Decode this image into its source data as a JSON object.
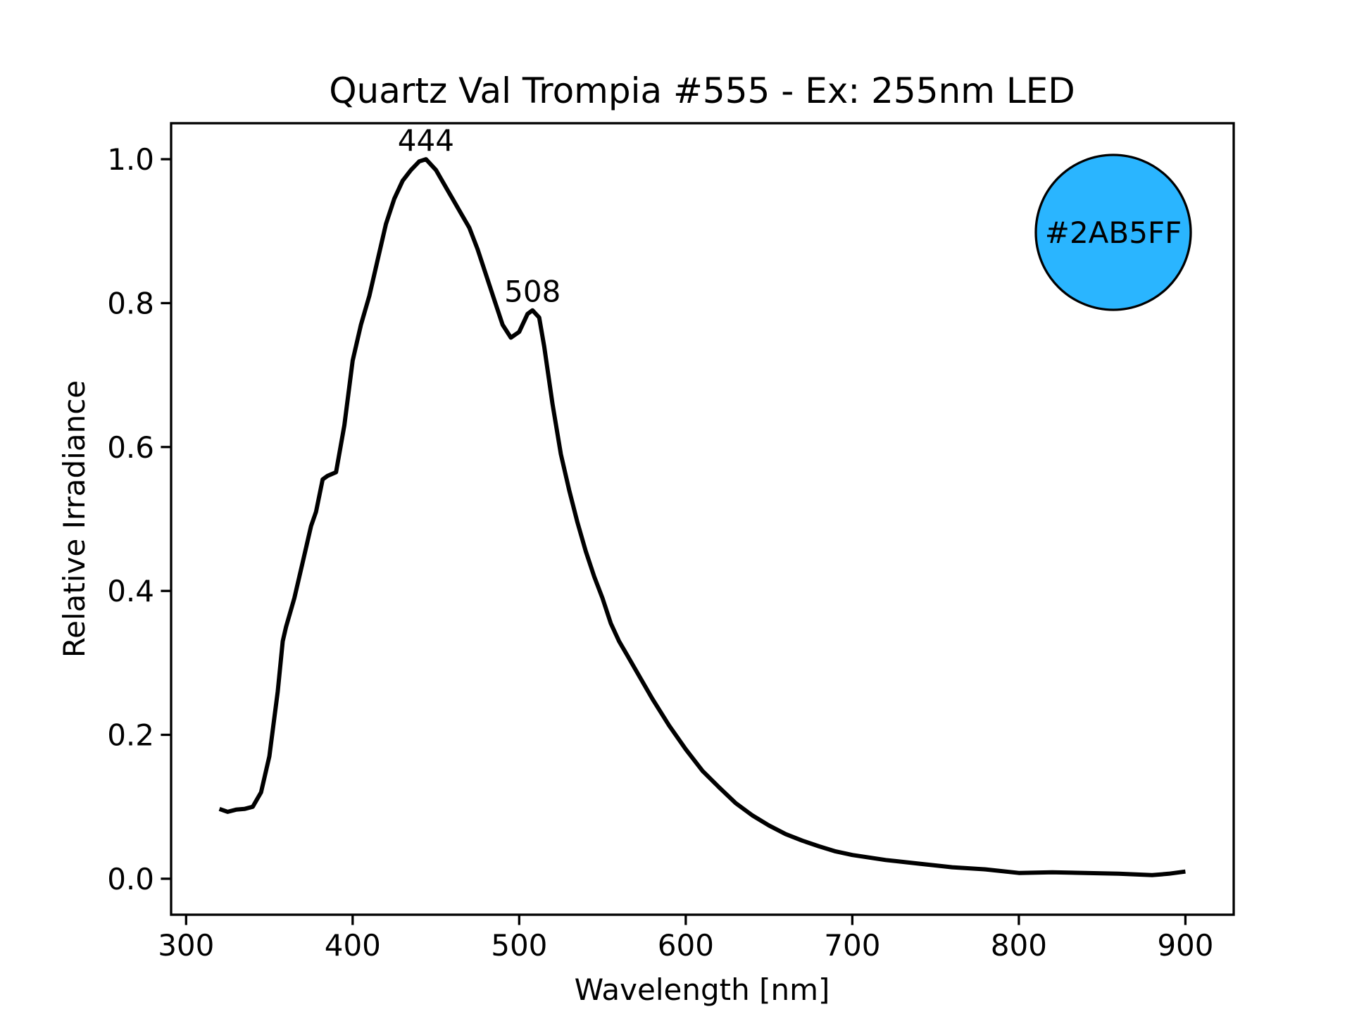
{
  "chart_data": {
    "type": "line",
    "title": "Quartz Val Trompia #555 - Ex: 255nm LED",
    "xlabel": "Wavelength [nm]",
    "ylabel": "Relative Irradiance",
    "xlim": [
      291,
      929
    ],
    "ylim": [
      -0.05,
      1.05
    ],
    "xticks": [
      300,
      400,
      500,
      600,
      700,
      800,
      900
    ],
    "yticks": [
      {
        "value": 0,
        "label": "0.0"
      },
      {
        "value": 0.2,
        "label": "0.2"
      },
      {
        "value": 0.4,
        "label": "0.4"
      },
      {
        "value": 0.6,
        "label": "0.6"
      },
      {
        "value": 0.8,
        "label": "0.8"
      },
      {
        "value": 1,
        "label": "1.0"
      }
    ],
    "series": [
      {
        "color": "#000000",
        "x": [
          320,
          325,
          330,
          335,
          340,
          345,
          350,
          355,
          358,
          360,
          365,
          370,
          375,
          378,
          382,
          385,
          390,
          395,
          400,
          405,
          410,
          415,
          420,
          425,
          430,
          435,
          440,
          444,
          450,
          455,
          460,
          465,
          470,
          475,
          480,
          485,
          490,
          495,
          500,
          505,
          508,
          512,
          515,
          520,
          525,
          530,
          535,
          540,
          545,
          550,
          555,
          560,
          565,
          570,
          580,
          590,
          600,
          610,
          620,
          630,
          640,
          650,
          660,
          670,
          680,
          690,
          700,
          720,
          740,
          760,
          780,
          800,
          820,
          840,
          860,
          880,
          890,
          900
        ],
        "values": [
          0.097,
          0.093,
          0.096,
          0.097,
          0.1,
          0.12,
          0.17,
          0.26,
          0.33,
          0.35,
          0.39,
          0.44,
          0.49,
          0.51,
          0.555,
          0.56,
          0.565,
          0.63,
          0.72,
          0.77,
          0.81,
          0.86,
          0.91,
          0.945,
          0.97,
          0.985,
          0.997,
          1.0,
          0.985,
          0.965,
          0.945,
          0.925,
          0.905,
          0.875,
          0.84,
          0.805,
          0.77,
          0.752,
          0.76,
          0.785,
          0.79,
          0.78,
          0.74,
          0.66,
          0.59,
          0.54,
          0.495,
          0.455,
          0.42,
          0.39,
          0.355,
          0.33,
          0.31,
          0.29,
          0.25,
          0.213,
          0.18,
          0.15,
          0.127,
          0.105,
          0.088,
          0.074,
          0.062,
          0.053,
          0.045,
          0.038,
          0.033,
          0.026,
          0.021,
          0.016,
          0.013,
          0.008,
          0.009,
          0.008,
          0.007,
          0.005,
          0.007,
          0.01
        ]
      }
    ],
    "peaks": [
      {
        "x": 444,
        "y": 1.0
      },
      {
        "x": 508,
        "y": 0.79
      }
    ],
    "swatch": "#2AB5FF"
  }
}
